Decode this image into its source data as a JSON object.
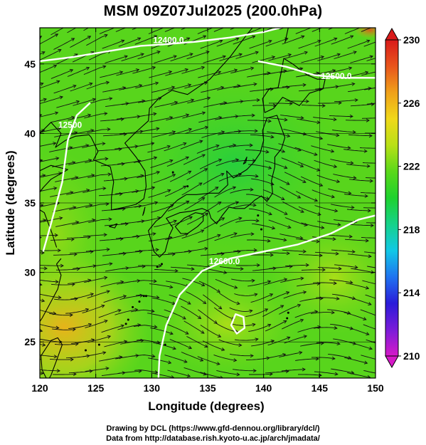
{
  "title": "MSM 09Z07Jul2025 (200.0hPa)",
  "credits": {
    "line1": "Drawing by DCL (https://www.gfd-dennou.org/library/dcl/)",
    "line2": "Data from http://database.rish.kyoto-u.ac.jp/arch/jmadata/"
  },
  "map": {
    "xlabel": "Longitude (degrees)",
    "ylabel": "Latitude  (degrees)",
    "xlim": [
      120,
      150
    ],
    "ylim": [
      22.4,
      47.6
    ],
    "x_ticks": [
      "120",
      "125",
      "130",
      "135",
      "140",
      "145",
      "150"
    ],
    "y_ticks": [
      "25",
      "30",
      "35",
      "40",
      "45"
    ],
    "grid": true,
    "contour_labels": [
      {
        "text": "12400.0",
        "lon": 131.5,
        "lat": 46.5
      },
      {
        "text": "12500.0",
        "lon": 146.5,
        "lat": 43.9
      },
      {
        "text": "12500",
        "lon": 122.7,
        "lat": 40.4
      },
      {
        "text": "12600.0",
        "lon": 136.5,
        "lat": 30.6
      }
    ]
  },
  "colorbar": {
    "min": 210,
    "max": 230,
    "labels": [
      "230",
      "226",
      "222",
      "218",
      "214",
      "210"
    ],
    "unit": "",
    "colors": [
      "#d619c8",
      "#7a1cd9",
      "#2a1cd9",
      "#1f73f0",
      "#12c8e6",
      "#15d28a",
      "#1ed22e",
      "#5ad81a",
      "#b9e016",
      "#f0d81a",
      "#f0a11a",
      "#e8551c",
      "#d91a1a"
    ]
  }
}
